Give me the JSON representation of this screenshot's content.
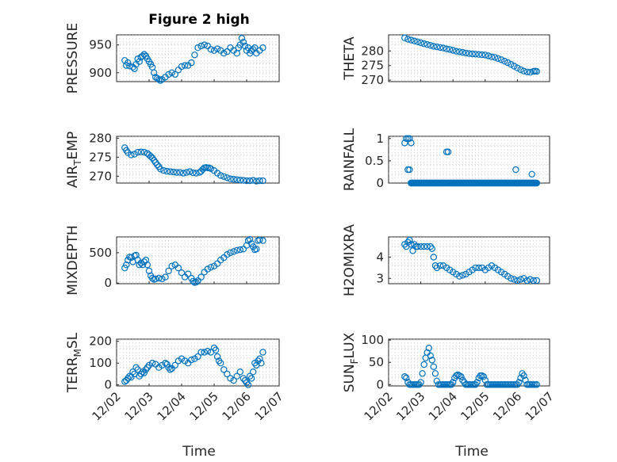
{
  "figure": {
    "title": "Figure 2 high"
  },
  "colors": {
    "marker": "#0072BD",
    "axis": "#262626",
    "grid": "#d0d0d0"
  },
  "chart_data": [
    {
      "id": "pressure",
      "type": "scatter",
      "ylabel": "PRESSURE",
      "ylabel_sub": "",
      "ylim": [
        884,
        968
      ],
      "yticks": [
        900,
        950
      ],
      "ytick_labels": [
        "900",
        "950"
      ],
      "xlim": [
        0,
        5
      ],
      "xticks": [
        0,
        1,
        2,
        3,
        4,
        5
      ],
      "x": [
        0.25,
        0.3,
        0.35,
        0.4,
        0.5,
        0.55,
        0.6,
        0.65,
        0.7,
        0.75,
        0.8,
        0.85,
        0.9,
        0.95,
        1.0,
        1.05,
        1.1,
        1.15,
        1.2,
        1.25,
        1.3,
        1.35,
        1.4,
        1.5,
        1.6,
        1.7,
        1.8,
        1.9,
        2.0,
        2.1,
        2.2,
        2.3,
        2.4,
        2.5,
        2.6,
        2.7,
        2.8,
        2.9,
        3.0,
        3.1,
        3.2,
        3.3,
        3.4,
        3.5,
        3.6,
        3.7,
        3.75,
        3.8,
        3.85,
        3.9,
        3.95,
        4.0,
        4.05,
        4.1,
        4.15,
        4.2,
        4.25,
        4.3,
        4.4,
        4.5
      ],
      "y": [
        922,
        913,
        918,
        912,
        910,
        907,
        915,
        925,
        920,
        928,
        930,
        933,
        930,
        925,
        920,
        915,
        910,
        900,
        892,
        890,
        888,
        886,
        888,
        892,
        897,
        900,
        897,
        905,
        911,
        913,
        913,
        918,
        932,
        945,
        948,
        950,
        948,
        942,
        940,
        943,
        940,
        935,
        938,
        945,
        940,
        935,
        945,
        950,
        962,
        955,
        948,
        940,
        945,
        935,
        940,
        942,
        945,
        935,
        940,
        945
      ]
    },
    {
      "id": "theta",
      "type": "scatter",
      "ylabel": "THETA",
      "ylabel_sub": "",
      "ylim": [
        269.5,
        285.5
      ],
      "yticks": [
        270,
        275,
        280
      ],
      "ytick_labels": [
        "270",
        "275",
        "280"
      ],
      "xlim": [
        0,
        5
      ],
      "xticks": [
        0,
        1,
        2,
        3,
        4,
        5
      ],
      "x": [
        0.5,
        0.6,
        0.7,
        0.8,
        0.9,
        1.0,
        1.1,
        1.2,
        1.3,
        1.4,
        1.5,
        1.6,
        1.7,
        1.8,
        1.9,
        2.0,
        2.1,
        2.2,
        2.3,
        2.4,
        2.5,
        2.6,
        2.7,
        2.8,
        2.9,
        3.0,
        3.1,
        3.2,
        3.3,
        3.4,
        3.5,
        3.6,
        3.7,
        3.8,
        3.9,
        4.0,
        4.1,
        4.2,
        4.3,
        4.4,
        4.5,
        4.55,
        4.6
      ],
      "y": [
        284.5,
        284.0,
        283.7,
        283.4,
        283.1,
        282.8,
        282.5,
        282.2,
        281.9,
        281.6,
        281.4,
        281.2,
        281.0,
        280.7,
        280.5,
        280.2,
        279.9,
        279.7,
        279.5,
        279.3,
        279.1,
        279.0,
        278.9,
        278.8,
        278.7,
        278.6,
        278.3,
        278.0,
        277.8,
        277.4,
        277.0,
        276.5,
        276.0,
        275.4,
        274.8,
        274.2,
        273.6,
        273.1,
        272.8,
        272.7,
        273.0,
        273.1,
        273.0
      ]
    },
    {
      "id": "air_temp",
      "type": "scatter",
      "ylabel": "AIR",
      "ylabel_sub": "T",
      "ylabel_rest": "EMP",
      "ylim": [
        268.2,
        280.5
      ],
      "yticks": [
        270,
        275,
        280
      ],
      "ytick_labels": [
        "270",
        "275",
        "280"
      ],
      "xlim": [
        0,
        5
      ],
      "xticks": [
        0,
        1,
        2,
        3,
        4,
        5
      ],
      "x": [
        0.25,
        0.3,
        0.35,
        0.45,
        0.55,
        0.65,
        0.75,
        0.85,
        0.95,
        1.0,
        1.05,
        1.1,
        1.15,
        1.2,
        1.25,
        1.3,
        1.35,
        1.45,
        1.55,
        1.65,
        1.75,
        1.85,
        1.95,
        2.05,
        2.15,
        2.25,
        2.35,
        2.45,
        2.55,
        2.6,
        2.65,
        2.7,
        2.75,
        2.8,
        2.85,
        2.9,
        3.0,
        3.1,
        3.2,
        3.3,
        3.4,
        3.5,
        3.6,
        3.7,
        3.8,
        3.9,
        4.0,
        4.1,
        4.2,
        4.3,
        4.4,
        4.5
      ],
      "y": [
        277.5,
        276.8,
        276.2,
        275.6,
        275.8,
        276.3,
        276.4,
        276.3,
        276.0,
        275.6,
        275.2,
        274.8,
        274.2,
        273.6,
        273.0,
        272.5,
        271.9,
        271.5,
        271.3,
        271.2,
        271.1,
        271.0,
        271.0,
        270.8,
        271.0,
        271.2,
        270.9,
        270.8,
        271.0,
        271.3,
        271.8,
        272.2,
        272.3,
        272.2,
        272.2,
        272.0,
        271.5,
        270.8,
        270.2,
        269.9,
        269.6,
        269.3,
        269.2,
        269.1,
        269.0,
        268.9,
        268.8,
        268.8,
        268.9,
        268.7,
        268.8,
        268.8
      ]
    },
    {
      "id": "rainfall",
      "type": "scatter",
      "ylabel": "RAINFALL",
      "ylabel_sub": "",
      "ylim": [
        0,
        1.05
      ],
      "yticks": [
        0,
        0.5,
        1
      ],
      "ytick_labels": [
        "0",
        "0.5",
        "1"
      ],
      "xlim": [
        0,
        5
      ],
      "xticks": [
        0,
        1,
        2,
        3,
        4,
        5
      ],
      "x": [
        0.5,
        0.55,
        0.6,
        0.6,
        0.65,
        0.65,
        0.7,
        0.7,
        1.8,
        1.85,
        3.95,
        4.0,
        4.45
      ],
      "y": [
        0.9,
        1.0,
        1.0,
        0.3,
        1.0,
        0.3,
        0.9,
        0.0,
        0.7,
        0.7,
        0.3,
        0.0,
        0.2
      ],
      "zero_run": {
        "from": 0.7,
        "to": 4.6,
        "value": 0
      }
    },
    {
      "id": "mixdepth",
      "type": "scatter",
      "ylabel": "MIXDEPTH",
      "ylabel_sub": "",
      "ylim": [
        -10,
        760
      ],
      "yticks": [
        0,
        500
      ],
      "ytick_labels": [
        "0",
        "500"
      ],
      "xlim": [
        0,
        5
      ],
      "xticks": [
        0,
        1,
        2,
        3,
        4,
        5
      ],
      "x": [
        0.25,
        0.3,
        0.35,
        0.4,
        0.45,
        0.5,
        0.55,
        0.6,
        0.65,
        0.7,
        0.75,
        0.8,
        0.85,
        0.9,
        0.95,
        1.0,
        1.05,
        1.1,
        1.15,
        1.2,
        1.3,
        1.4,
        1.5,
        1.6,
        1.7,
        1.8,
        1.9,
        2.0,
        2.1,
        2.2,
        2.3,
        2.35,
        2.4,
        2.45,
        2.5,
        2.6,
        2.7,
        2.8,
        2.9,
        3.0,
        3.1,
        3.2,
        3.3,
        3.4,
        3.5,
        3.6,
        3.7,
        3.8,
        3.9,
        4.0,
        4.05,
        4.1,
        4.15,
        4.2,
        4.25,
        4.3,
        4.35,
        4.4,
        4.5
      ],
      "y": [
        250,
        300,
        380,
        430,
        420,
        350,
        450,
        460,
        380,
        300,
        330,
        300,
        350,
        380,
        300,
        200,
        120,
        80,
        60,
        70,
        80,
        70,
        100,
        200,
        280,
        300,
        250,
        170,
        100,
        150,
        80,
        30,
        10,
        15,
        40,
        100,
        180,
        230,
        260,
        280,
        320,
        380,
        420,
        470,
        500,
        520,
        540,
        550,
        560,
        620,
        700,
        720,
        650,
        600,
        550,
        560,
        700,
        710,
        700
      ]
    },
    {
      "id": "h2omixra",
      "type": "scatter",
      "ylabel": "H2OMIXRA",
      "ylabel_sub": "",
      "ylim": [
        2.75,
        4.95
      ],
      "yticks": [
        3,
        4
      ],
      "ytick_labels": [
        "3",
        "4"
      ],
      "xlim": [
        0,
        5
      ],
      "xticks": [
        0,
        1,
        2,
        3,
        4,
        5
      ],
      "x": [
        0.5,
        0.55,
        0.6,
        0.65,
        0.7,
        0.75,
        0.8,
        0.85,
        0.9,
        1.0,
        1.1,
        1.2,
        1.3,
        1.35,
        1.4,
        1.45,
        1.5,
        1.6,
        1.7,
        1.8,
        1.9,
        2.0,
        2.1,
        2.2,
        2.3,
        2.4,
        2.5,
        2.6,
        2.7,
        2.8,
        2.9,
        3.0,
        3.1,
        3.2,
        3.3,
        3.4,
        3.5,
        3.6,
        3.7,
        3.8,
        3.9,
        4.0,
        4.1,
        4.2,
        4.3,
        4.4,
        4.5,
        4.6
      ],
      "y": [
        4.6,
        4.5,
        4.7,
        4.8,
        4.6,
        4.3,
        4.6,
        4.5,
        4.5,
        4.5,
        4.5,
        4.5,
        4.5,
        4.4,
        4.0,
        3.6,
        3.5,
        3.6,
        3.6,
        3.5,
        3.4,
        3.3,
        3.2,
        3.1,
        3.15,
        3.2,
        3.3,
        3.4,
        3.5,
        3.5,
        3.5,
        3.4,
        3.5,
        3.6,
        3.5,
        3.4,
        3.3,
        3.2,
        3.1,
        3.0,
        2.95,
        2.9,
        2.95,
        3.0,
        2.9,
        2.95,
        2.9,
        2.9
      ]
    },
    {
      "id": "terr_msl",
      "type": "scatter",
      "ylabel": "TERR",
      "ylabel_sub": "M",
      "ylabel_rest": "SL",
      "ylim": [
        -5,
        210
      ],
      "yticks": [
        0,
        100,
        200
      ],
      "ytick_labels": [
        "0",
        "100",
        "200"
      ],
      "xlim": [
        0,
        5
      ],
      "xticks": [
        0,
        1,
        2,
        3,
        4,
        5
      ],
      "x": [
        0.25,
        0.3,
        0.35,
        0.4,
        0.45,
        0.5,
        0.55,
        0.6,
        0.65,
        0.7,
        0.75,
        0.8,
        0.85,
        0.9,
        0.95,
        1.0,
        1.1,
        1.2,
        1.3,
        1.4,
        1.5,
        1.55,
        1.6,
        1.65,
        1.7,
        1.8,
        1.9,
        2.0,
        2.1,
        2.2,
        2.3,
        2.4,
        2.5,
        2.6,
        2.7,
        2.8,
        2.9,
        3.0,
        3.05,
        3.1,
        3.15,
        3.2,
        3.3,
        3.4,
        3.5,
        3.6,
        3.7,
        3.8,
        3.9,
        3.95,
        4.0,
        4.05,
        4.1,
        4.15,
        4.2,
        4.25,
        4.3,
        4.35,
        4.4,
        4.45,
        4.5
      ],
      "y": [
        15,
        20,
        30,
        40,
        35,
        60,
        50,
        80,
        70,
        40,
        50,
        60,
        55,
        70,
        80,
        90,
        100,
        95,
        80,
        90,
        100,
        95,
        80,
        70,
        75,
        90,
        110,
        120,
        110,
        100,
        115,
        120,
        130,
        150,
        150,
        155,
        150,
        170,
        160,
        130,
        110,
        100,
        70,
        50,
        30,
        20,
        40,
        60,
        30,
        20,
        10,
        0,
        40,
        30,
        60,
        100,
        90,
        110,
        120,
        100,
        150
      ]
    },
    {
      "id": "sun_flux",
      "type": "scatter",
      "ylabel": "SUN",
      "ylabel_sub": "F",
      "ylabel_rest": "LUX",
      "ylim": [
        -3,
        102
      ],
      "yticks": [
        0,
        50,
        100
      ],
      "ytick_labels": [
        "0",
        "50",
        "100"
      ],
      "xlim": [
        0,
        5
      ],
      "xticks": [
        0,
        1,
        2,
        3,
        4,
        5
      ],
      "x": [
        0.5,
        0.55,
        0.6,
        0.65,
        0.7,
        0.75,
        0.8,
        0.85,
        0.9,
        0.95,
        1.0,
        1.05,
        1.1,
        1.15,
        1.2,
        1.25,
        1.3,
        1.35,
        1.4,
        1.45,
        1.5,
        1.55,
        1.6,
        1.65,
        1.7,
        1.75,
        1.8,
        1.85,
        1.9,
        1.95,
        2.0,
        2.05,
        2.1,
        2.15,
        2.2,
        2.25,
        2.3,
        2.35,
        2.4,
        2.45,
        2.5,
        2.55,
        2.6,
        2.65,
        2.7,
        2.75,
        2.8,
        2.85,
        2.9,
        2.95,
        3.0,
        3.05,
        3.1,
        3.15,
        3.2,
        3.25,
        3.3,
        3.35,
        3.4,
        3.45,
        3.5,
        3.55,
        3.6,
        3.65,
        3.7,
        3.75,
        3.8,
        3.85,
        3.9,
        3.95,
        4.0,
        4.05,
        4.1,
        4.15,
        4.2,
        4.25,
        4.3,
        4.35,
        4.4,
        4.45,
        4.5,
        4.55,
        4.6
      ],
      "y": [
        18,
        15,
        5,
        0,
        0,
        0,
        0,
        0,
        0,
        0,
        5,
        25,
        45,
        60,
        72,
        82,
        65,
        55,
        40,
        25,
        8,
        0,
        0,
        0,
        0,
        0,
        0,
        0,
        0,
        0,
        5,
        15,
        20,
        22,
        20,
        18,
        10,
        5,
        0,
        0,
        0,
        0,
        0,
        0,
        0,
        5,
        15,
        20,
        20,
        18,
        10,
        0,
        0,
        0,
        0,
        0,
        0,
        0,
        0,
        0,
        0,
        0,
        0,
        0,
        0,
        0,
        0,
        0,
        0,
        0,
        0,
        5,
        15,
        25,
        20,
        10,
        0,
        0,
        0,
        0,
        0,
        0,
        0
      ]
    }
  ],
  "xaxis": {
    "tick_labels": [
      "12/02",
      "12/03",
      "12/04",
      "12/05",
      "12/06",
      "12/07"
    ],
    "label": "Time"
  }
}
